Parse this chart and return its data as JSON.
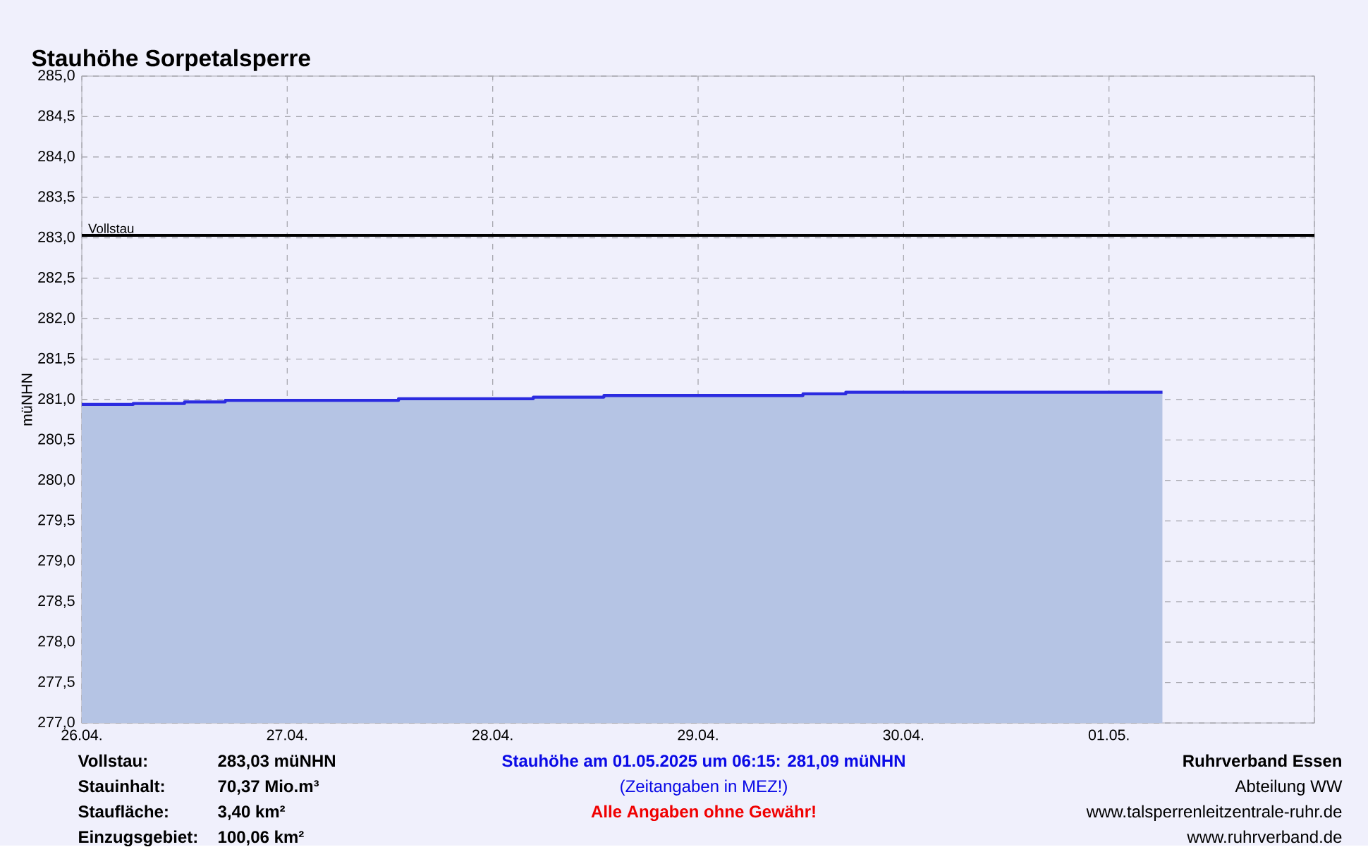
{
  "chart_data": {
    "type": "area",
    "title": "Stauhöhe Sorpetalsperre",
    "ylabel": "müNHN",
    "xlim": [
      "2025-04-26",
      "2025-05-02"
    ],
    "xticks": [
      {
        "value": "2025-04-26",
        "label": "26.04."
      },
      {
        "value": "2025-04-27",
        "label": "27.04."
      },
      {
        "value": "2025-04-28",
        "label": "28.04."
      },
      {
        "value": "2025-04-29",
        "label": "29.04."
      },
      {
        "value": "2025-04-30",
        "label": "30.04."
      },
      {
        "value": "2025-05-01",
        "label": "01.05."
      },
      {
        "value": "2025-05-02",
        "label": null
      }
    ],
    "ylim": [
      277,
      285
    ],
    "yticks": [
      {
        "value": 277,
        "label": "277,0"
      },
      {
        "value": 277.5,
        "label": "277,5"
      },
      {
        "value": 278,
        "label": "278,0"
      },
      {
        "value": 278.5,
        "label": "278,5"
      },
      {
        "value": 279,
        "label": "279,0"
      },
      {
        "value": 279.5,
        "label": "279,5"
      },
      {
        "value": 280,
        "label": "280,0"
      },
      {
        "value": 280.5,
        "label": "280,5"
      },
      {
        "value": 281,
        "label": "281,0"
      },
      {
        "value": 281.5,
        "label": "281,5"
      },
      {
        "value": 282,
        "label": "282,0"
      },
      {
        "value": 282.5,
        "label": "282,5"
      },
      {
        "value": 283,
        "label": "283,0"
      },
      {
        "value": 283.5,
        "label": "283,5"
      },
      {
        "value": 284,
        "label": "284,0"
      },
      {
        "value": 284.5,
        "label": "284,5"
      },
      {
        "value": 285,
        "label": "285,0"
      }
    ],
    "grid": true,
    "series": [
      {
        "color": "#2b2be0",
        "x": [
          "2025-04-26T00:00",
          "2025-04-26T06:00",
          "2025-04-26T06:00",
          "2025-04-26T12:00",
          "2025-04-26T12:00",
          "2025-04-26T16:45",
          "2025-04-26T16:45",
          "2025-04-27T13:00",
          "2025-04-27T13:00",
          "2025-04-28T04:45",
          "2025-04-28T04:45",
          "2025-04-28T13:00",
          "2025-04-28T13:00",
          "2025-04-29T12:15",
          "2025-04-29T12:15",
          "2025-04-29T17:15",
          "2025-04-29T17:15",
          "2025-05-01T06:15"
        ],
        "values": [
          280.94,
          280.94,
          280.95,
          280.95,
          280.97,
          280.97,
          280.99,
          280.99,
          281.01,
          281.01,
          281.03,
          281.03,
          281.05,
          281.05,
          281.07,
          281.07,
          281.09,
          281.09
        ]
      }
    ],
    "ref_lines": [
      {
        "axis": "y",
        "value": 283.03,
        "label": "Vollstau",
        "color": "#000000"
      }
    ],
    "annotations": [
      "Vollstau:",
      "283,03 müNHN",
      "Stauinhalt:",
      "70,37 Mio.m³",
      "Staufläche:",
      "3,40 km²",
      "Einzugsgebiet:",
      "100,06 km²",
      "Stauhöhe am 01.05.2025 um 06:15: 281,09  müNHN",
      "(Zeitangaben in MEZ!)",
      "Alle Angaben ohne Gewähr!",
      "Ruhrverband Essen",
      "Abteilung WW",
      "www.talsperrenleitzentrale-ruhr.de",
      "www.ruhrverband.de"
    ]
  }
}
